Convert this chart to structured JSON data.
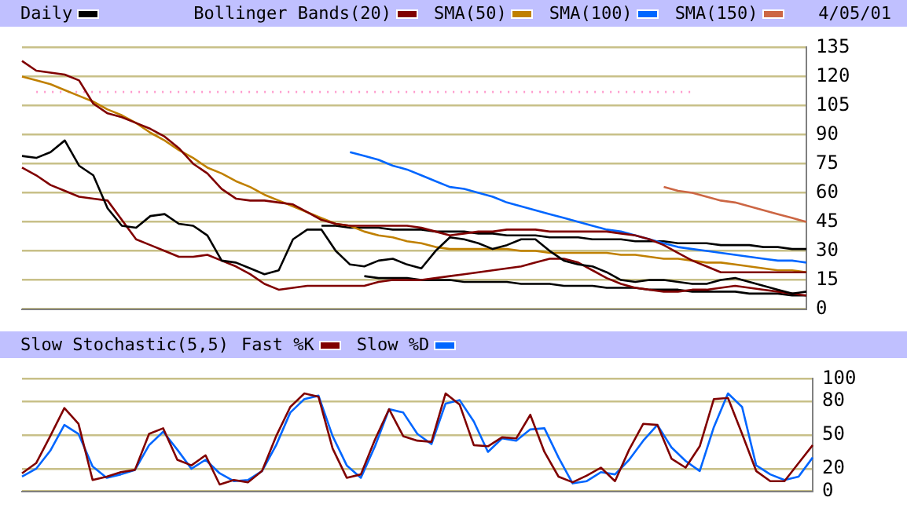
{
  "chart_data": [
    {
      "type": "line",
      "annotations": [
        "4/05/01"
      ],
      "legend": "top",
      "tick_labels": "y",
      "grid": "y",
      "ylim": [
        0,
        135
      ],
      "categories": [
        null,
        null,
        null,
        null,
        null,
        null,
        null,
        null,
        null,
        null,
        null,
        null,
        null,
        null,
        null,
        null,
        null,
        null,
        null,
        null,
        null,
        null,
        null,
        null,
        null,
        null,
        null,
        null,
        null,
        null,
        null,
        null,
        null,
        null,
        null,
        null,
        null,
        null,
        null,
        null,
        null,
        null,
        null,
        null,
        null,
        null,
        null,
        null,
        null,
        null,
        null,
        null,
        null,
        null,
        null,
        null
      ],
      "yticks": [
        0,
        15,
        30,
        45,
        60,
        75,
        90,
        105,
        120,
        135
      ],
      "series": [
        {
          "name": "Daily",
          "color": "#000000",
          "values": [
            79,
            78,
            81,
            87,
            74,
            69,
            52,
            43,
            42,
            48,
            49,
            44,
            43,
            38,
            25,
            24,
            21,
            18,
            20,
            36,
            41,
            41,
            30,
            23,
            22,
            25,
            26,
            23,
            21,
            30,
            37,
            36,
            34,
            31,
            33,
            36,
            36,
            30,
            25,
            23,
            22,
            19,
            15,
            14,
            15,
            15,
            14,
            13,
            13,
            15,
            16,
            14,
            12,
            10,
            8,
            9
          ]
        },
        {
          "name": "Bollinger Bands(20)",
          "color": "#800000",
          "values": [
            128,
            123,
            122,
            121,
            118,
            106,
            101,
            99,
            96,
            93,
            89,
            83,
            75,
            70,
            62,
            57,
            56,
            56,
            55,
            54,
            50,
            46,
            44,
            43,
            43,
            43,
            43,
            43,
            42,
            40,
            38,
            39,
            40,
            40,
            41,
            41,
            41,
            40,
            40,
            40,
            40,
            40,
            39,
            38,
            36,
            33,
            29,
            25,
            22,
            19,
            19,
            19,
            19,
            19,
            19,
            19
          ]
        },
        {
          "color": "#800000",
          "values": [
            73,
            69,
            64,
            61,
            58,
            57,
            56,
            46,
            36,
            33,
            30,
            27,
            27,
            28,
            25,
            22,
            18,
            13,
            10,
            11,
            12,
            12,
            12,
            12,
            12,
            14,
            15,
            15,
            15,
            16,
            17,
            18,
            19,
            20,
            21,
            22,
            24,
            26,
            26,
            24,
            20,
            16,
            13,
            11,
            10,
            9,
            9,
            10,
            10,
            11,
            12,
            11,
            10,
            9,
            8,
            7
          ]
        },
        {
          "name": "SMA(50)",
          "color": "#c08000",
          "values": [
            120,
            118,
            116,
            113,
            110,
            107,
            103,
            100,
            96,
            91,
            87,
            82,
            78,
            73,
            70,
            66,
            63,
            59,
            56,
            53,
            50,
            47,
            44,
            43,
            40,
            38,
            37,
            35,
            34,
            32,
            31,
            31,
            31,
            31,
            31,
            30,
            30,
            29,
            29,
            29,
            29,
            29,
            28,
            28,
            27,
            26,
            26,
            25,
            24,
            24,
            23,
            22,
            21,
            20,
            20,
            19
          ]
        },
        {
          "name": "SMA(100)",
          "color": "#0066ff",
          "values": [
            null,
            null,
            null,
            null,
            null,
            null,
            null,
            null,
            null,
            null,
            null,
            null,
            null,
            null,
            null,
            null,
            null,
            null,
            null,
            null,
            null,
            null,
            null,
            81,
            79,
            77,
            74,
            72,
            69,
            66,
            63,
            62,
            60,
            58,
            55,
            53,
            51,
            49,
            47,
            45,
            43,
            41,
            40,
            38,
            36,
            34,
            32,
            31,
            30,
            29,
            28,
            27,
            26,
            25,
            25,
            24
          ]
        },
        {
          "name": "SMA(150)",
          "color": "#cc6644",
          "values": [
            null,
            null,
            null,
            null,
            null,
            null,
            null,
            null,
            null,
            null,
            null,
            null,
            null,
            null,
            null,
            null,
            null,
            null,
            null,
            null,
            null,
            null,
            null,
            null,
            null,
            null,
            null,
            null,
            null,
            null,
            null,
            null,
            null,
            null,
            null,
            null,
            null,
            null,
            null,
            null,
            null,
            null,
            null,
            null,
            null,
            63,
            61,
            60,
            58,
            56,
            55,
            53,
            51,
            49,
            47,
            45
          ]
        },
        {
          "color": "#000000",
          "values": [
            null,
            null,
            null,
            null,
            null,
            null,
            null,
            null,
            null,
            null,
            null,
            null,
            null,
            null,
            null,
            null,
            null,
            null,
            null,
            null,
            null,
            43,
            43,
            42,
            42,
            42,
            41,
            41,
            41,
            40,
            40,
            40,
            39,
            39,
            38,
            38,
            38,
            37,
            37,
            37,
            36,
            36,
            36,
            35,
            35,
            35,
            34,
            34,
            34,
            33,
            33,
            33,
            32,
            32,
            31,
            31
          ]
        },
        {
          "color": "#000000",
          "values": [
            null,
            null,
            null,
            null,
            null,
            null,
            null,
            null,
            null,
            null,
            null,
            null,
            null,
            null,
            null,
            null,
            null,
            null,
            null,
            null,
            null,
            null,
            null,
            null,
            17,
            16,
            16,
            16,
            15,
            15,
            15,
            14,
            14,
            14,
            14,
            13,
            13,
            13,
            12,
            12,
            12,
            11,
            11,
            11,
            10,
            10,
            10,
            9,
            9,
            9,
            9,
            8,
            8,
            8,
            7,
            7
          ]
        },
        {
          "color": "#ff99cc",
          "line_style": "dotted",
          "values": [
            null,
            112,
            112,
            112,
            112,
            112,
            112,
            112,
            112,
            112,
            112,
            112,
            112,
            112,
            112,
            112,
            112,
            112,
            112,
            112,
            112,
            112,
            112,
            112,
            112,
            112,
            112,
            112,
            112,
            112,
            112,
            112,
            112,
            112,
            112,
            112,
            112,
            112,
            112,
            112,
            112,
            112,
            112,
            112,
            112,
            112,
            112,
            112,
            null,
            null,
            null,
            null,
            null,
            null,
            null,
            null
          ]
        }
      ]
    },
    {
      "type": "line",
      "title": "Slow Stochastic(5,5)",
      "legend": "top",
      "tick_labels": "y",
      "grid": "y",
      "ylim": [
        0,
        100
      ],
      "categories": [
        null,
        null,
        null,
        null,
        null,
        null,
        null,
        null,
        null,
        null,
        null,
        null,
        null,
        null,
        null,
        null,
        null,
        null,
        null,
        null,
        null,
        null,
        null,
        null,
        null,
        null,
        null,
        null,
        null,
        null,
        null,
        null,
        null,
        null,
        null,
        null,
        null,
        null,
        null,
        null,
        null,
        null,
        null,
        null,
        null,
        null,
        null,
        null,
        null,
        null,
        null,
        null,
        null,
        null,
        null,
        null,
        null
      ],
      "yticks": [
        0,
        20,
        50,
        80,
        100
      ],
      "series": [
        {
          "name": "Fast %K",
          "color": "#800000",
          "values": [
            16,
            25,
            49,
            74,
            60,
            10,
            13,
            17,
            19,
            51,
            56,
            28,
            23,
            32,
            6,
            10,
            8,
            18,
            49,
            75,
            87,
            84,
            38,
            12,
            15,
            46,
            73,
            49,
            45,
            44,
            87,
            77,
            41,
            40,
            48,
            47,
            68,
            35,
            13,
            8,
            14,
            21,
            9,
            37,
            60,
            59,
            29,
            21,
            40,
            82,
            83,
            51,
            18,
            9,
            9,
            25,
            41
          ]
        },
        {
          "name": "Slow %D",
          "color": "#0066ff",
          "values": [
            13,
            20,
            36,
            59,
            51,
            22,
            12,
            15,
            19,
            41,
            53,
            37,
            20,
            28,
            16,
            9,
            10,
            18,
            41,
            70,
            82,
            85,
            49,
            23,
            12,
            40,
            73,
            70,
            51,
            42,
            78,
            81,
            62,
            35,
            47,
            45,
            55,
            56,
            30,
            7,
            9,
            17,
            15,
            28,
            45,
            59,
            39,
            27,
            18,
            57,
            87,
            75,
            23,
            15,
            10,
            13,
            30
          ]
        }
      ]
    }
  ]
}
